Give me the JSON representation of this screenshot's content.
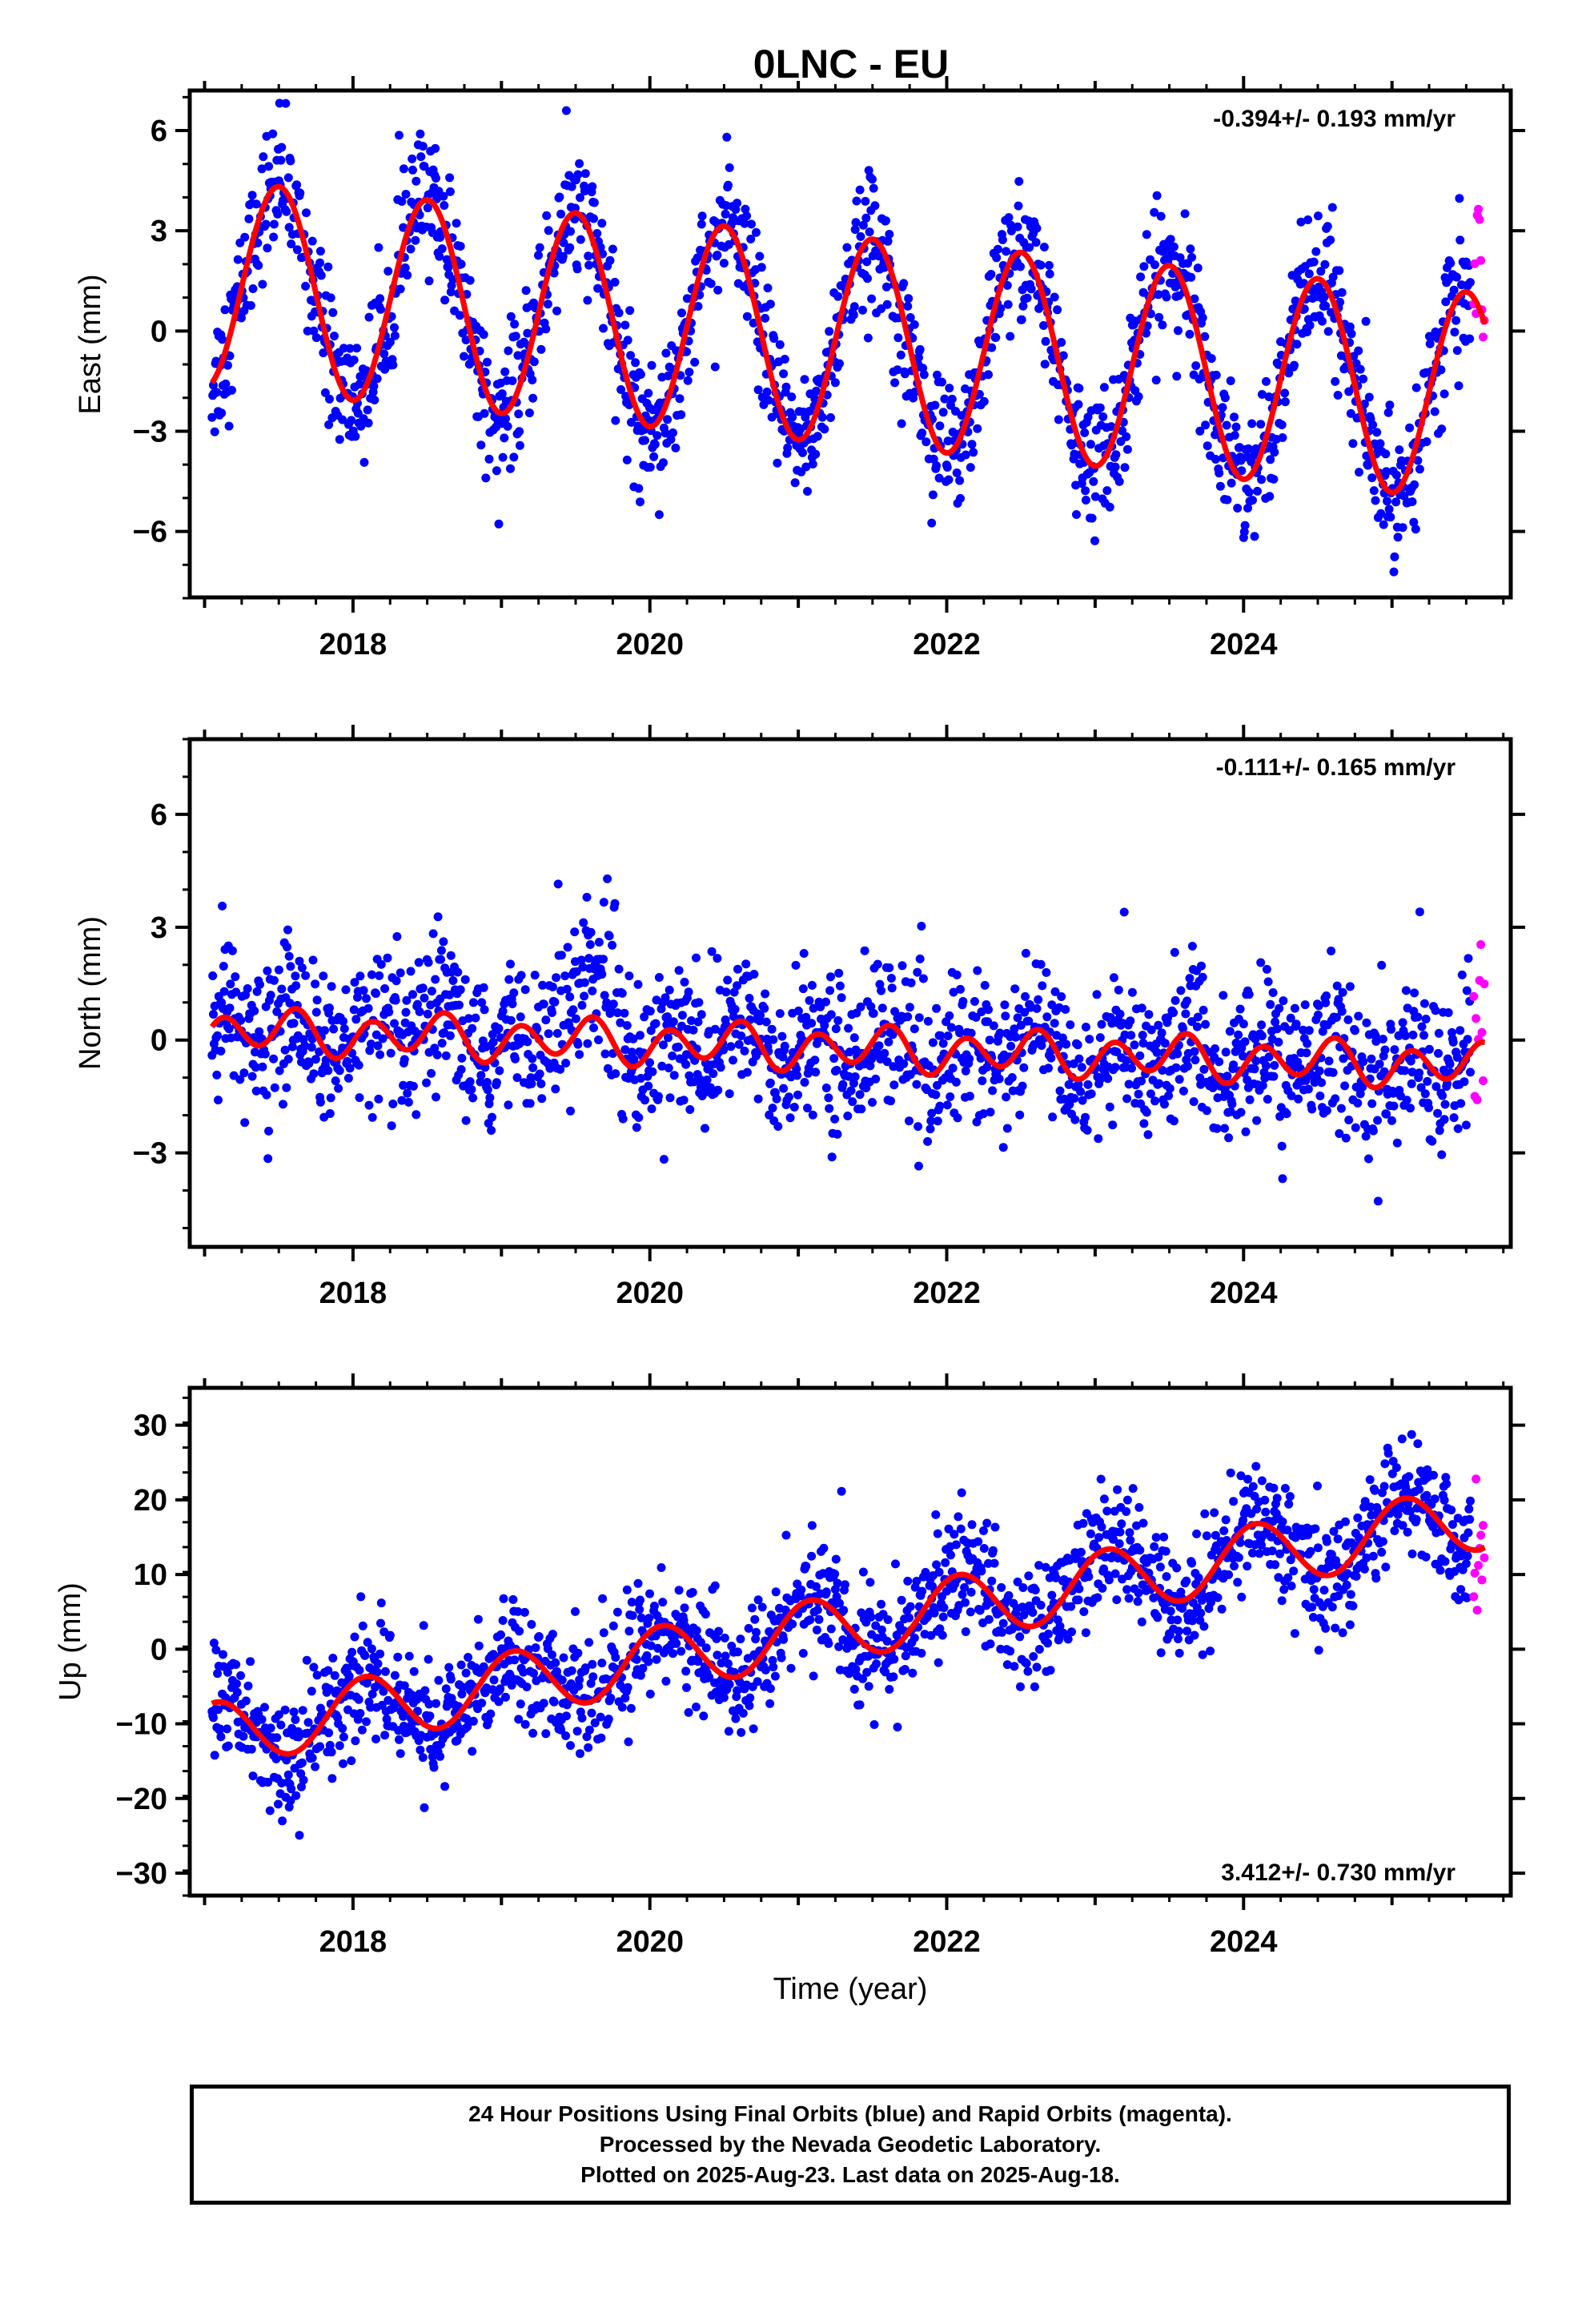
{
  "title": "0LNC - EU",
  "colors": {
    "final": "#0000ff",
    "rapid": "#ff00ff",
    "model": "#ff0000",
    "axis": "#000000"
  },
  "footer": {
    "line1": "24 Hour Positions Using Final Orbits (blue) and Rapid Orbits (magenta).",
    "line2": "Processed by the Nevada Geodetic Laboratory.",
    "line3": "Plotted on 2025-Aug-23. Last data on 2025-Aug-18."
  },
  "chart_data": [
    {
      "type": "scatter",
      "component": "east",
      "ylabel": "East (mm)",
      "xlabel": "",
      "xlim": [
        2016.9,
        2025.8
      ],
      "ylim": [
        -8,
        7.2
      ],
      "xticks": [
        2018,
        2020,
        2022,
        2024
      ],
      "yticks": [
        -6,
        -3,
        0,
        3,
        6
      ],
      "rate_label": "-0.394+/- 0.193 mm/yr",
      "rate_label_position": "top-right",
      "series": [
        {
          "role": "final-orbits",
          "color": "#0000ff",
          "time_range": [
            2017.05,
            2025.53
          ],
          "noise_mm": 1.0
        },
        {
          "role": "rapid-orbits",
          "color": "#ff00ff",
          "time_range": [
            2025.55,
            2025.63
          ]
        },
        {
          "role": "model-fit",
          "color": "#ff0000"
        }
      ],
      "model": {
        "offset": 1.4,
        "rate": -0.394,
        "annual_amp": 3.1,
        "annual_phase": -0.25
      }
    },
    {
      "type": "scatter",
      "component": "north",
      "ylabel": "North (mm)",
      "xlabel": "",
      "xlim": [
        2016.9,
        2025.8
      ],
      "ylim": [
        -5.5,
        8
      ],
      "xticks": [
        2018,
        2020,
        2022,
        2024
      ],
      "yticks": [
        -3,
        0,
        3,
        6
      ],
      "rate_label": "-0.111+/- 0.165 mm/yr",
      "rate_label_position": "top-right",
      "series": [
        {
          "role": "final-orbits",
          "color": "#0000ff",
          "time_range": [
            2017.05,
            2025.53
          ],
          "noise_mm": 1.0
        },
        {
          "role": "rapid-orbits",
          "color": "#ff00ff",
          "time_range": [
            2025.55,
            2025.63
          ]
        },
        {
          "role": "model-fit",
          "color": "#ff0000"
        }
      ],
      "model": {
        "offset": 0.25,
        "rate": -0.111,
        "annual_amp": 0.2,
        "annual_phase": -0.25,
        "semiannual_amp": 0.5,
        "semiannual_phase": 0.0
      }
    },
    {
      "type": "scatter",
      "component": "up",
      "ylabel": "Up (mm)",
      "xlabel": "Time (year)",
      "xlim": [
        2016.9,
        2025.8
      ],
      "ylim": [
        -33,
        35
      ],
      "xticks": [
        2018,
        2020,
        2022,
        2024
      ],
      "yticks": [
        -30,
        -20,
        -10,
        0,
        10,
        20,
        30
      ],
      "rate_label": "3.412+/- 0.730 mm/yr",
      "rate_label_position": "bottom-right",
      "series": [
        {
          "role": "final-orbits",
          "color": "#0000ff",
          "time_range": [
            2017.05,
            2025.53
          ],
          "noise_mm": 4.0
        },
        {
          "role": "rapid-orbits",
          "color": "#ff00ff",
          "time_range": [
            2025.55,
            2025.63
          ]
        },
        {
          "role": "model-fit",
          "color": "#ff0000"
        }
      ],
      "model": {
        "offset": -11.5,
        "rate": 3.412,
        "annual_amp": 4.3,
        "annual_phase": 0.17
      }
    }
  ]
}
